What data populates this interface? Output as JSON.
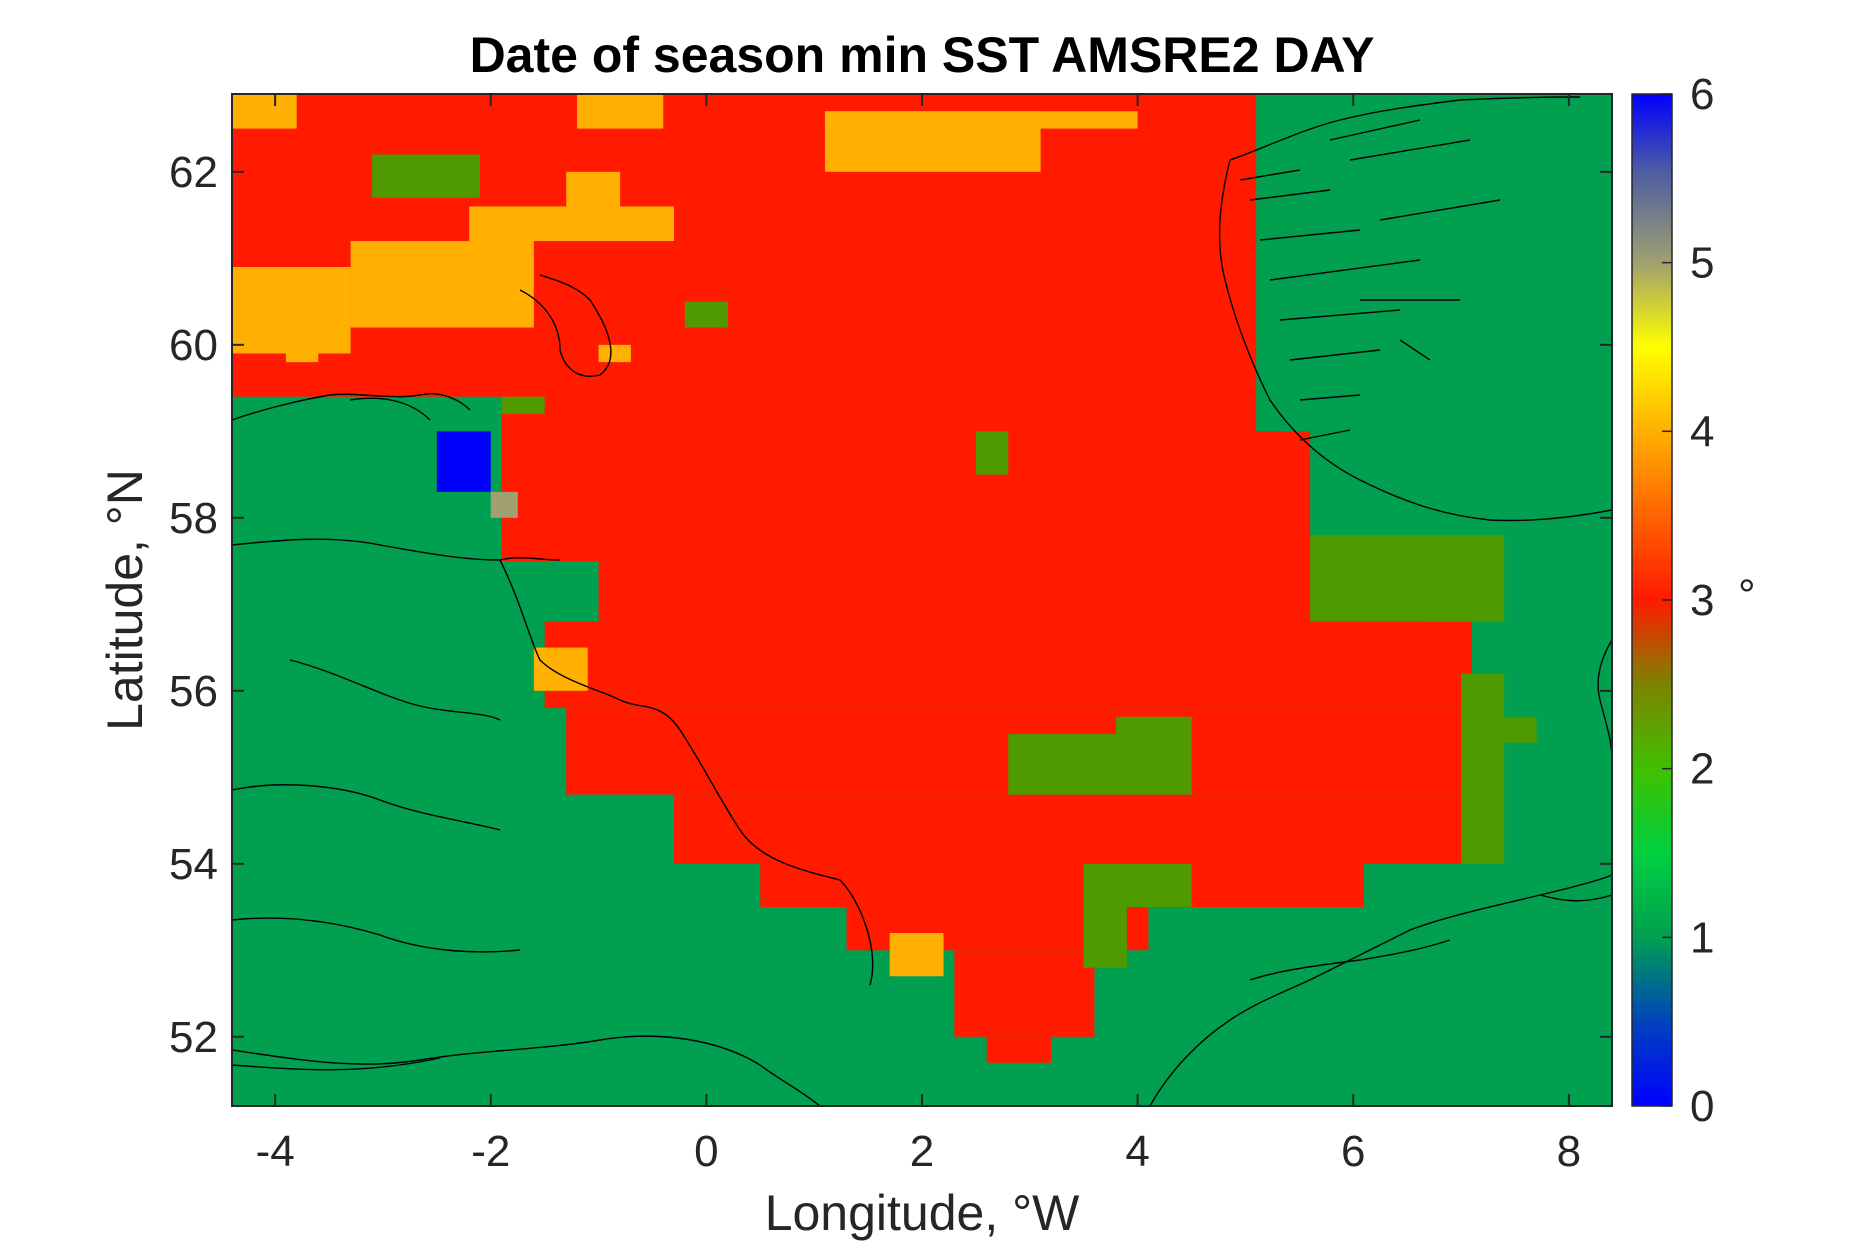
{
  "chart_data": {
    "type": "heatmap",
    "title": "Date of season min SST AMSRE2 DAY",
    "xlabel": "Longitude, °W",
    "ylabel": "Latitude, °N",
    "xlim": [
      -4.4,
      8.4
    ],
    "ylim": [
      51.2,
      62.9
    ],
    "xticks": [
      -4,
      -2,
      0,
      2,
      4,
      6,
      8
    ],
    "xtick_labels": [
      "-4",
      "-2",
      "0",
      "2",
      "4",
      "6",
      "8"
    ],
    "yticks": [
      52,
      54,
      56,
      58,
      60,
      62
    ],
    "ytick_labels": [
      "52",
      "54",
      "56",
      "58",
      "60",
      "62"
    ],
    "colorbar": {
      "range": [
        0,
        6
      ],
      "ticks": [
        0,
        1,
        2,
        3,
        4,
        5,
        6
      ],
      "tick_labels": [
        "0",
        "1",
        "2",
        "3",
        "4",
        "5",
        "6"
      ],
      "unit_label": "°",
      "colormap": [
        "#0000ff",
        "#00a050",
        "#40c000",
        "#ff1a00",
        "#ffb000",
        "#a0a070",
        "#0000ff"
      ]
    },
    "grid_resolution_deg": {
      "lon": 0.25,
      "lat": 0.25
    },
    "background_value": 1,
    "regions": [
      {
        "value": 3,
        "lon": [
          -4.4,
          5.1
        ],
        "lat": [
          60.9,
          62.9
        ]
      },
      {
        "value": 3,
        "lon": [
          -4.4,
          -1.6
        ],
        "lat": [
          59.4,
          60.9
        ]
      },
      {
        "value": 3,
        "lon": [
          -1.9,
          5.1
        ],
        "lat": [
          57.5,
          60.9
        ]
      },
      {
        "value": 3,
        "lon": [
          -1.9,
          0.3
        ],
        "lat": [
          59.0,
          59.6
        ]
      },
      {
        "value": 3,
        "lon": [
          -1.9,
          5.6
        ],
        "lat": [
          57.8,
          59.0
        ]
      },
      {
        "value": 3,
        "lon": [
          -1.9,
          3.8
        ],
        "lat": [
          57.8,
          58.3
        ]
      },
      {
        "value": 3,
        "lon": [
          -1.0,
          6.6
        ],
        "lat": [
          56.8,
          57.8
        ]
      },
      {
        "value": 3,
        "lon": [
          -1.5,
          7.1
        ],
        "lat": [
          55.8,
          56.8
        ]
      },
      {
        "value": 3,
        "lon": [
          -1.3,
          7.1
        ],
        "lat": [
          54.8,
          55.8
        ]
      },
      {
        "value": 3,
        "lon": [
          -0.3,
          7.1
        ],
        "lat": [
          54.0,
          54.8
        ]
      },
      {
        "value": 3,
        "lon": [
          0.5,
          6.1
        ],
        "lat": [
          53.5,
          54.0
        ]
      },
      {
        "value": 3,
        "lon": [
          1.3,
          4.1
        ],
        "lat": [
          53.0,
          53.5
        ]
      },
      {
        "value": 3,
        "lon": [
          2.3,
          3.6
        ],
        "lat": [
          52.0,
          53.0
        ]
      },
      {
        "value": 3,
        "lon": [
          2.6,
          3.2
        ],
        "lat": [
          51.7,
          52.0
        ]
      },
      {
        "value": 4,
        "lon": [
          -4.4,
          -3.3
        ],
        "lat": [
          59.9,
          60.9
        ]
      },
      {
        "value": 4,
        "lon": [
          -3.3,
          -1.6
        ],
        "lat": [
          60.2,
          61.2
        ]
      },
      {
        "value": 4,
        "lon": [
          -2.2,
          -0.3
        ],
        "lat": [
          61.2,
          61.6
        ]
      },
      {
        "value": 4,
        "lon": [
          -1.3,
          -0.8
        ],
        "lat": [
          61.6,
          62.0
        ]
      },
      {
        "value": 4,
        "lon": [
          -4.4,
          -3.8
        ],
        "lat": [
          62.5,
          62.9
        ]
      },
      {
        "value": 4,
        "lon": [
          -1.2,
          -0.4
        ],
        "lat": [
          62.5,
          62.9
        ]
      },
      {
        "value": 4,
        "lon": [
          1.1,
          3.1
        ],
        "lat": [
          62.0,
          62.7
        ]
      },
      {
        "value": 4,
        "lon": [
          1.1,
          4.0
        ],
        "lat": [
          62.5,
          62.7
        ]
      },
      {
        "value": 4,
        "lon": [
          -3.9,
          -3.6
        ],
        "lat": [
          59.8,
          60.0
        ]
      },
      {
        "value": 4,
        "lon": [
          -1.0,
          -0.7
        ],
        "lat": [
          59.8,
          60.0
        ]
      },
      {
        "value": 4,
        "lon": [
          -1.6,
          -1.1
        ],
        "lat": [
          56.0,
          56.5
        ]
      },
      {
        "value": 4,
        "lon": [
          1.7,
          2.2
        ],
        "lat": [
          52.7,
          53.2
        ]
      },
      {
        "value": 2,
        "lon": [
          -3.1,
          -2.1
        ],
        "lat": [
          61.7,
          62.2
        ]
      },
      {
        "value": 2,
        "lon": [
          -1.9,
          -1.5
        ],
        "lat": [
          59.2,
          59.4
        ]
      },
      {
        "value": 2,
        "lon": [
          -0.2,
          0.2
        ],
        "lat": [
          60.2,
          60.5
        ]
      },
      {
        "value": 2,
        "lon": [
          2.5,
          2.8
        ],
        "lat": [
          58.5,
          59.0
        ]
      },
      {
        "value": 2,
        "lon": [
          2.8,
          4.5
        ],
        "lat": [
          54.8,
          55.5
        ]
      },
      {
        "value": 2,
        "lon": [
          3.8,
          4.5
        ],
        "lat": [
          55.3,
          55.7
        ]
      },
      {
        "value": 2,
        "lon": [
          3.5,
          4.5
        ],
        "lat": [
          53.5,
          54.0
        ]
      },
      {
        "value": 2,
        "lon": [
          3.5,
          3.9
        ],
        "lat": [
          52.8,
          53.5
        ]
      },
      {
        "value": 2,
        "lon": [
          5.6,
          7.4
        ],
        "lat": [
          56.8,
          57.8
        ]
      },
      {
        "value": 2,
        "lon": [
          7.0,
          7.4
        ],
        "lat": [
          54.0,
          56.2
        ]
      },
      {
        "value": 2,
        "lon": [
          7.4,
          7.7
        ],
        "lat": [
          55.4,
          55.7
        ]
      },
      {
        "value": 0,
        "lon": [
          -2.5,
          -2.0
        ],
        "lat": [
          58.3,
          59.0
        ]
      },
      {
        "value": 5,
        "lon": [
          -2.0,
          -2.0
        ],
        "lat": [
          58.0,
          58.3
        ]
      }
    ]
  }
}
